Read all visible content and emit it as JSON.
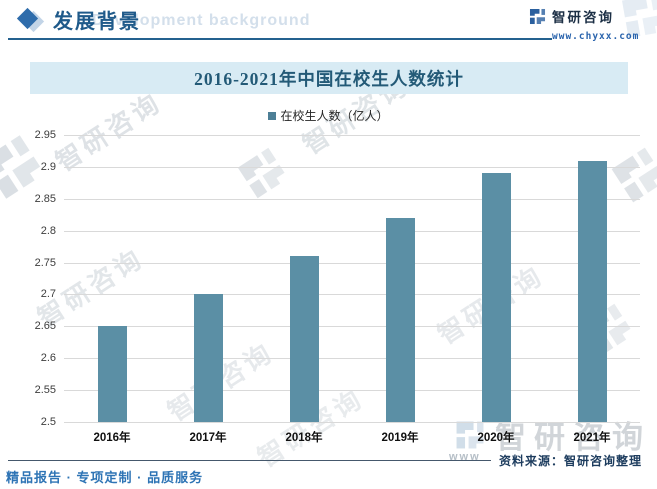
{
  "header": {
    "section_title": "发展背景",
    "section_title_en": "Development background",
    "brand": "智研咨询",
    "website": "www.chyxx.com"
  },
  "chart": {
    "title": "2016-2021年中国在校生人数统计",
    "legend_label": "在校生人数（亿人）"
  },
  "chart_data": {
    "type": "bar",
    "title": "2016-2021年中国在校生人数统计",
    "legend": [
      "在校生人数（亿人）"
    ],
    "categories": [
      "2016年",
      "2017年",
      "2018年",
      "2019年",
      "2020年",
      "2021年"
    ],
    "values": [
      2.65,
      2.7,
      2.76,
      2.82,
      2.89,
      2.91
    ],
    "xlabel": "",
    "ylabel": "",
    "ylim": [
      2.5,
      2.95
    ],
    "ytick_values": [
      2.95,
      2.9,
      2.85,
      2.8,
      2.75,
      2.7,
      2.65,
      2.6,
      2.55,
      2.5
    ],
    "ytick_labels": [
      "2.95",
      "2.9",
      "2.85",
      "2.8",
      "2.75",
      "2.7",
      "2.65",
      "2.6",
      "2.55",
      "2.5"
    ],
    "grid": true,
    "legend_position": "top",
    "bar_color": "#5b8fa5"
  },
  "footer": {
    "source_label": "资料来源：智研咨询整理",
    "services": "精品报告 · 专项定制 · 品质服务"
  },
  "watermark": {
    "text": "智研咨询",
    "www": "www"
  },
  "colors": {
    "bar": "#5b8fa5",
    "accent_blue": "#2e6cab",
    "banner_bg": "#d8ebf4",
    "title_text": "#235a77"
  }
}
